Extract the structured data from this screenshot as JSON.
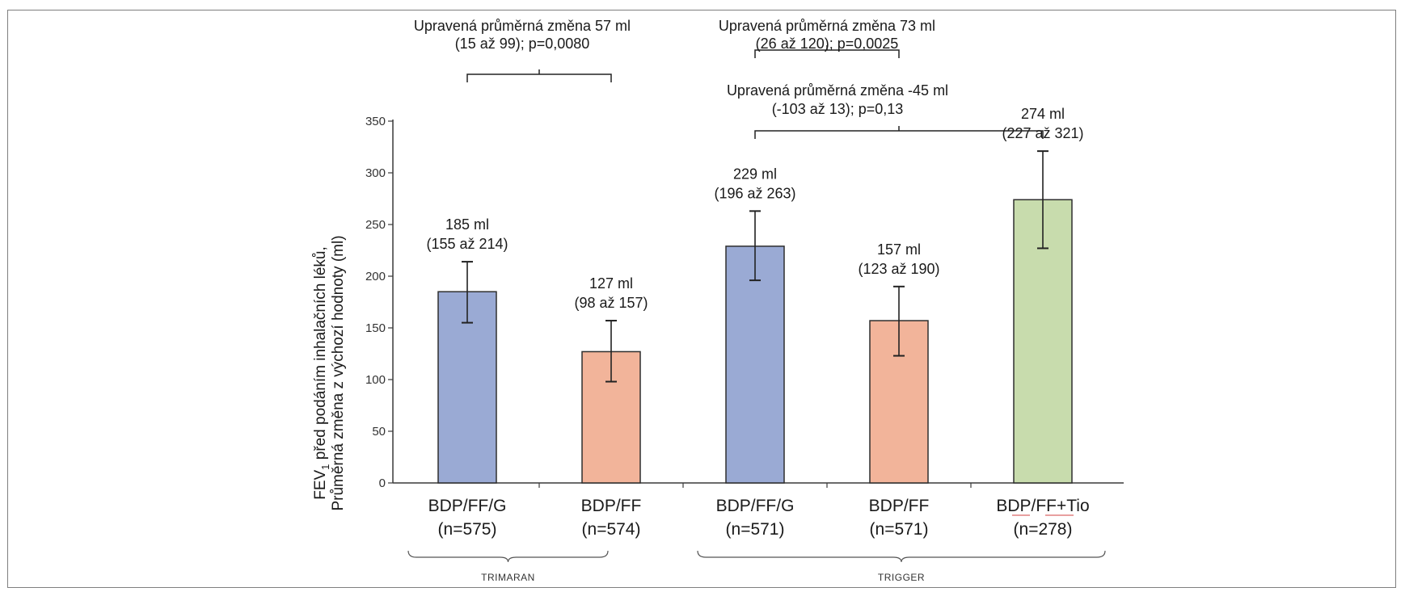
{
  "chart_data": {
    "type": "bar",
    "title": "",
    "ylabel_line1_prefix": "FEV",
    "ylabel_line1_sub": "1",
    "ylabel_line1_rest": " před podáním inhalačních léků,",
    "ylabel_line2": "Průměrná změna z výchozí hodnoty (ml)",
    "ylim": [
      0,
      350
    ],
    "yticks": [
      "0",
      "50",
      "100",
      "150",
      "200",
      "250",
      "300",
      "350"
    ],
    "categories": [
      {
        "name": "BDP/FF/G",
        "n": "(n=575)",
        "group": "TRIMARAN"
      },
      {
        "name": "BDP/FF",
        "n": "(n=574)",
        "group": "TRIMARAN"
      },
      {
        "name": "BDP/FF/G",
        "n": "(n=571)",
        "group": "TRIGGER"
      },
      {
        "name": "BDP/FF",
        "n": "(n=571)",
        "group": "TRIGGER"
      },
      {
        "name": "BDP/FF+Tio",
        "n": "(n=278)",
        "group": "TRIGGER"
      }
    ],
    "values": [
      185,
      127,
      229,
      157,
      274
    ],
    "ci_low": [
      155,
      98,
      196,
      123,
      227
    ],
    "ci_high": [
      214,
      157,
      263,
      190,
      321
    ],
    "bar_labels": [
      {
        "line1": "185 ml",
        "line2": "(155 až 214)"
      },
      {
        "line1": "127 ml",
        "line2": "(98 až 157)"
      },
      {
        "line1": "229 ml",
        "line2": "(196 až 263)"
      },
      {
        "line1": "157 ml",
        "line2": "(123 až 190)"
      },
      {
        "line1": "274 ml",
        "line2": "(227 až 321)"
      }
    ],
    "colors": [
      "#9aaad4",
      "#f2b49a",
      "#9aaad4",
      "#f2b49a",
      "#c8dcad"
    ],
    "comparisons": [
      {
        "from": 0,
        "to": 1,
        "line1": "Upravená průměrná změna 57 ml",
        "line2": "(15 až 99); p=0,0080"
      },
      {
        "from": 2,
        "to": 3,
        "line1": "Upravená průměrná změna 73 ml",
        "line2": "(26 až 120); p=0,0025"
      },
      {
        "from": 2,
        "to": 4,
        "line1": "Upravená průměrná změna -45 ml",
        "line2": "(-103 až 13); p=0,13"
      }
    ],
    "groups": [
      {
        "label": "TRIMARAN",
        "from": 0,
        "to": 1
      },
      {
        "label": "TRIGGER",
        "from": 2,
        "to": 4
      }
    ],
    "grid": false,
    "legend": "none"
  }
}
